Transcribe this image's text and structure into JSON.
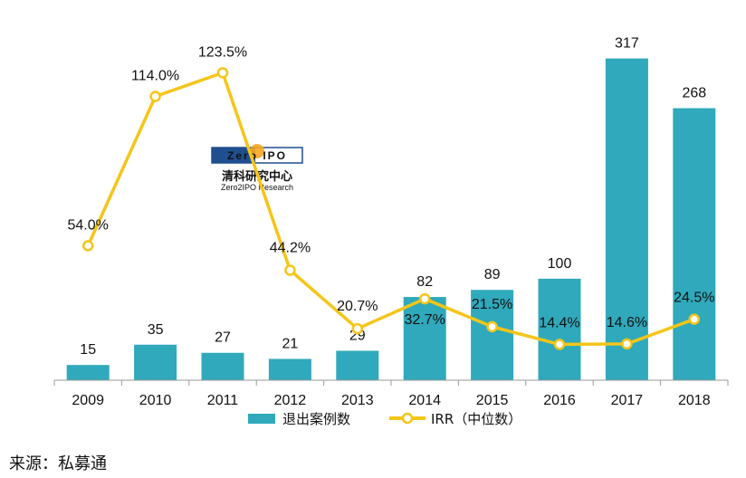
{
  "chart_data": {
    "type": "bar",
    "categories": [
      "2009",
      "2010",
      "2011",
      "2012",
      "2013",
      "2014",
      "2015",
      "2016",
      "2017",
      "2018"
    ],
    "series": [
      {
        "name": "退出案例数",
        "type": "bar",
        "axis": "left",
        "values": [
          15,
          35,
          27,
          21,
          29,
          82,
          89,
          100,
          317,
          268
        ]
      },
      {
        "name": "IRR（中位数）",
        "type": "line",
        "axis": "right",
        "unit": "%",
        "values": [
          54.0,
          114.0,
          123.5,
          44.2,
          20.7,
          32.7,
          21.5,
          14.4,
          14.6,
          24.5
        ]
      }
    ],
    "bar_labels": [
      "15",
      "35",
      "27",
      "21",
      "29",
      "82",
      "89",
      "100",
      "317",
      "268"
    ],
    "line_labels": [
      "54.0%",
      "114.0%",
      "123.5%",
      "44.2%",
      "20.7%",
      "32.7%",
      "21.5%",
      "14.4%",
      "14.6%",
      "24.5%"
    ],
    "left_ylim": [
      0,
      330
    ],
    "right_ylim": [
      0,
      160
    ],
    "grid": false,
    "legend": "bottom-center",
    "colors": {
      "bar": "#2FA9BB",
      "line": "#F5C518",
      "marker_fill": "#ffffff"
    }
  },
  "watermark": {
    "brand_box": "Zero IPO",
    "chinese": "清科研究中心",
    "english": "Zero2IPO Research"
  },
  "footer": {
    "source": "来源：私募通"
  }
}
